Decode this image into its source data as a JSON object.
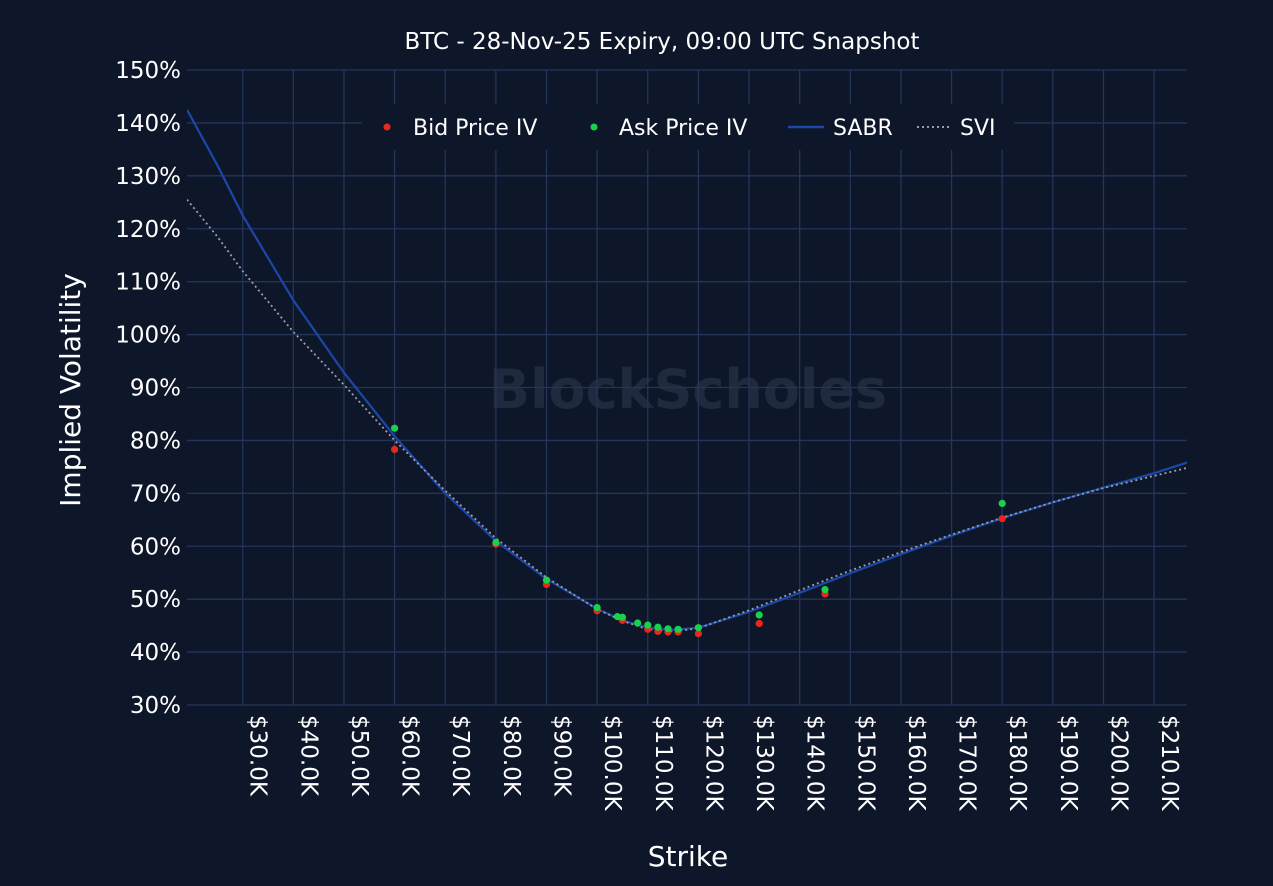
{
  "chart_data": {
    "type": "scatter",
    "title": "BTC - 28-Nov-25 Expiry, 09:00 UTC Snapshot",
    "xlabel": "Strike",
    "ylabel": "Implied Volatility",
    "watermark": "BlockScholes",
    "xlim": [
      19000,
      216500
    ],
    "ylim": [
      30,
      150
    ],
    "x_ticks": [
      30000,
      40000,
      50000,
      60000,
      70000,
      80000,
      90000,
      100000,
      110000,
      120000,
      130000,
      140000,
      150000,
      160000,
      170000,
      180000,
      190000,
      200000,
      210000
    ],
    "x_tick_labels": [
      "$30.0K",
      "$40.0K",
      "$50.0K",
      "$60.0K",
      "$70.0K",
      "$80.0K",
      "$90.0K",
      "$100.0K",
      "$110.0K",
      "$120.0K",
      "$130.0K",
      "$140.0K",
      "$150.0K",
      "$160.0K",
      "$170.0K",
      "$180.0K",
      "$190.0K",
      "$200.0K",
      "$210.0K"
    ],
    "y_ticks": [
      30,
      40,
      50,
      60,
      70,
      80,
      90,
      100,
      110,
      120,
      130,
      140,
      150
    ],
    "y_tick_labels": [
      "30%",
      "40%",
      "50%",
      "60%",
      "70%",
      "80%",
      "90%",
      "100%",
      "110%",
      "120%",
      "130%",
      "140%",
      "150%"
    ],
    "grid": true,
    "legend_position": "top-center",
    "colors": {
      "background": "#0e1729",
      "grid": "#24345a",
      "bid": "#e8281c",
      "ask": "#19d24b",
      "sabr": "#1a47a8",
      "svi": "#9a9ea6"
    },
    "series": [
      {
        "name": "Bid Price IV",
        "kind": "markers",
        "color": "#e8281c",
        "x": [
          60000,
          80000,
          90000,
          100000,
          105000,
          110000,
          112000,
          114000,
          116000,
          120000,
          132000,
          145000,
          180000
        ],
        "y": [
          78.3,
          60.4,
          52.8,
          47.8,
          46.0,
          44.3,
          43.9,
          43.8,
          43.8,
          43.5,
          45.4,
          51.0,
          65.2
        ]
      },
      {
        "name": "Ask Price IV",
        "kind": "markers",
        "color": "#19d24b",
        "x": [
          60000,
          80000,
          90000,
          100000,
          104000,
          105000,
          108000,
          110000,
          112000,
          114000,
          116000,
          120000,
          132000,
          145000,
          180000
        ],
        "y": [
          82.3,
          60.7,
          53.6,
          48.4,
          46.7,
          46.6,
          45.5,
          45.1,
          44.7,
          44.4,
          44.3,
          44.6,
          47.0,
          51.8,
          68.1
        ]
      },
      {
        "name": "SABR",
        "kind": "line",
        "color": "#1a47a8",
        "x": [
          19000,
          25000,
          30000,
          40000,
          50000,
          60000,
          70000,
          80000,
          90000,
          100000,
          105000,
          110000,
          115000,
          120000,
          130000,
          140000,
          150000,
          160000,
          170000,
          180000,
          190000,
          200000,
          210000,
          216500
        ],
        "y": [
          142.5,
          132.0,
          122.5,
          106.5,
          92.8,
          80.8,
          70.0,
          61.0,
          53.8,
          48.2,
          46.0,
          44.6,
          44.2,
          44.6,
          47.6,
          51.2,
          54.9,
          58.5,
          62.0,
          65.3,
          68.3,
          71.1,
          73.8,
          75.8
        ]
      },
      {
        "name": "SVI",
        "kind": "line-dotted",
        "color": "#9a9ea6",
        "x": [
          19000,
          25000,
          30000,
          40000,
          50000,
          60000,
          70000,
          80000,
          90000,
          100000,
          105000,
          110000,
          115000,
          120000,
          130000,
          140000,
          150000,
          160000,
          170000,
          180000,
          190000,
          200000,
          210000,
          216500
        ],
        "y": [
          125.5,
          118.5,
          112.0,
          100.5,
          90.5,
          80.0,
          70.5,
          61.5,
          54.1,
          48.1,
          45.9,
          44.3,
          43.9,
          44.5,
          47.9,
          51.7,
          55.4,
          58.9,
          62.2,
          65.4,
          68.3,
          71.0,
          73.3,
          74.8
        ]
      }
    ]
  }
}
